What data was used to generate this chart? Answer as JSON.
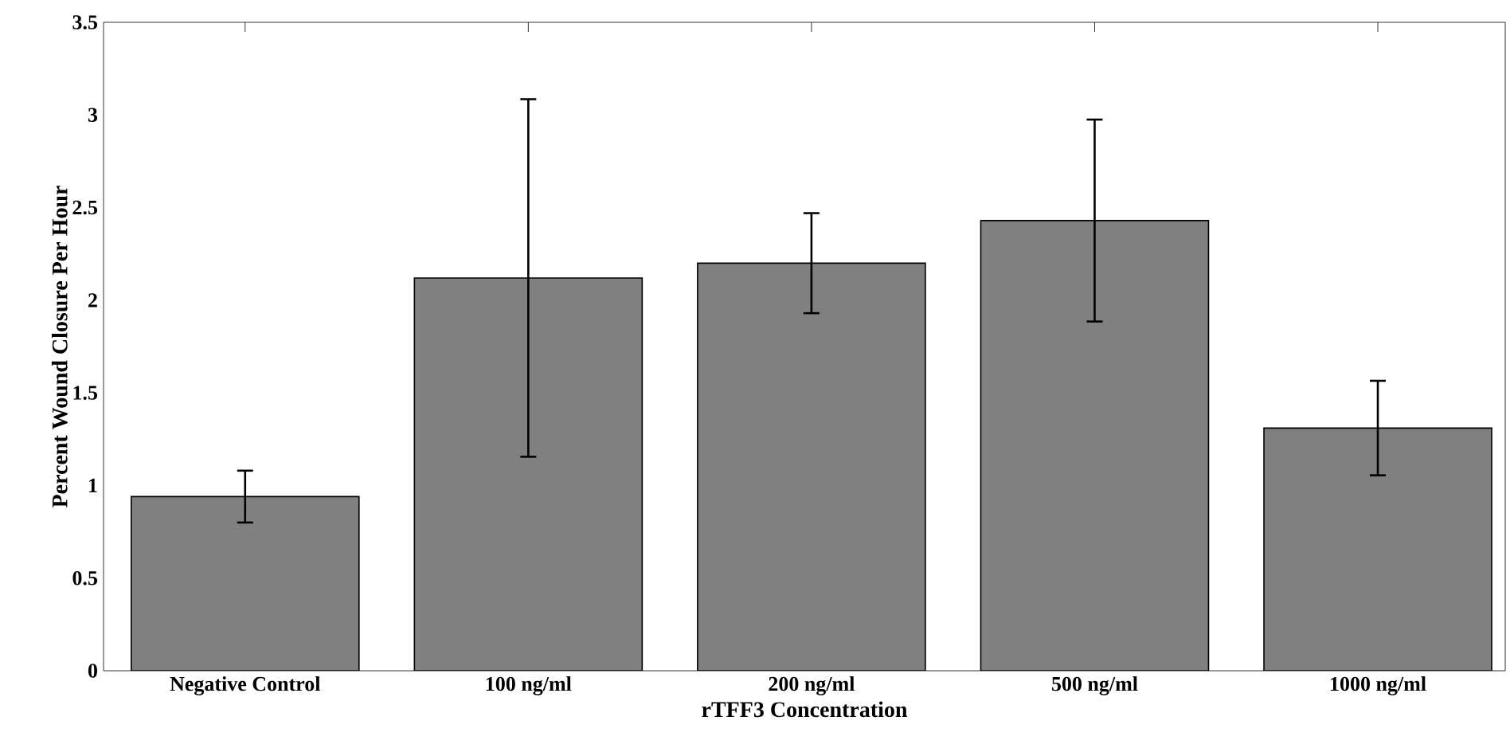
{
  "chart_data": {
    "type": "bar",
    "xlabel": "rTFF3 Concentration",
    "ylabel": "Percent Wound Closure Per Hour",
    "categories": [
      "Negative Control",
      "100 ng/ml",
      "200 ng/ml",
      "500 ng/ml",
      "1000 ng/ml"
    ],
    "values": [
      0.94,
      2.12,
      2.2,
      2.43,
      1.31
    ],
    "errors": [
      0.14,
      0.965,
      0.27,
      0.545,
      0.255
    ],
    "color": "#808080",
    "ylim": [
      0,
      3.5
    ],
    "yticks": [
      0,
      0.5,
      1,
      1.5,
      2,
      2.5,
      3,
      3.5
    ],
    "grid": false
  }
}
